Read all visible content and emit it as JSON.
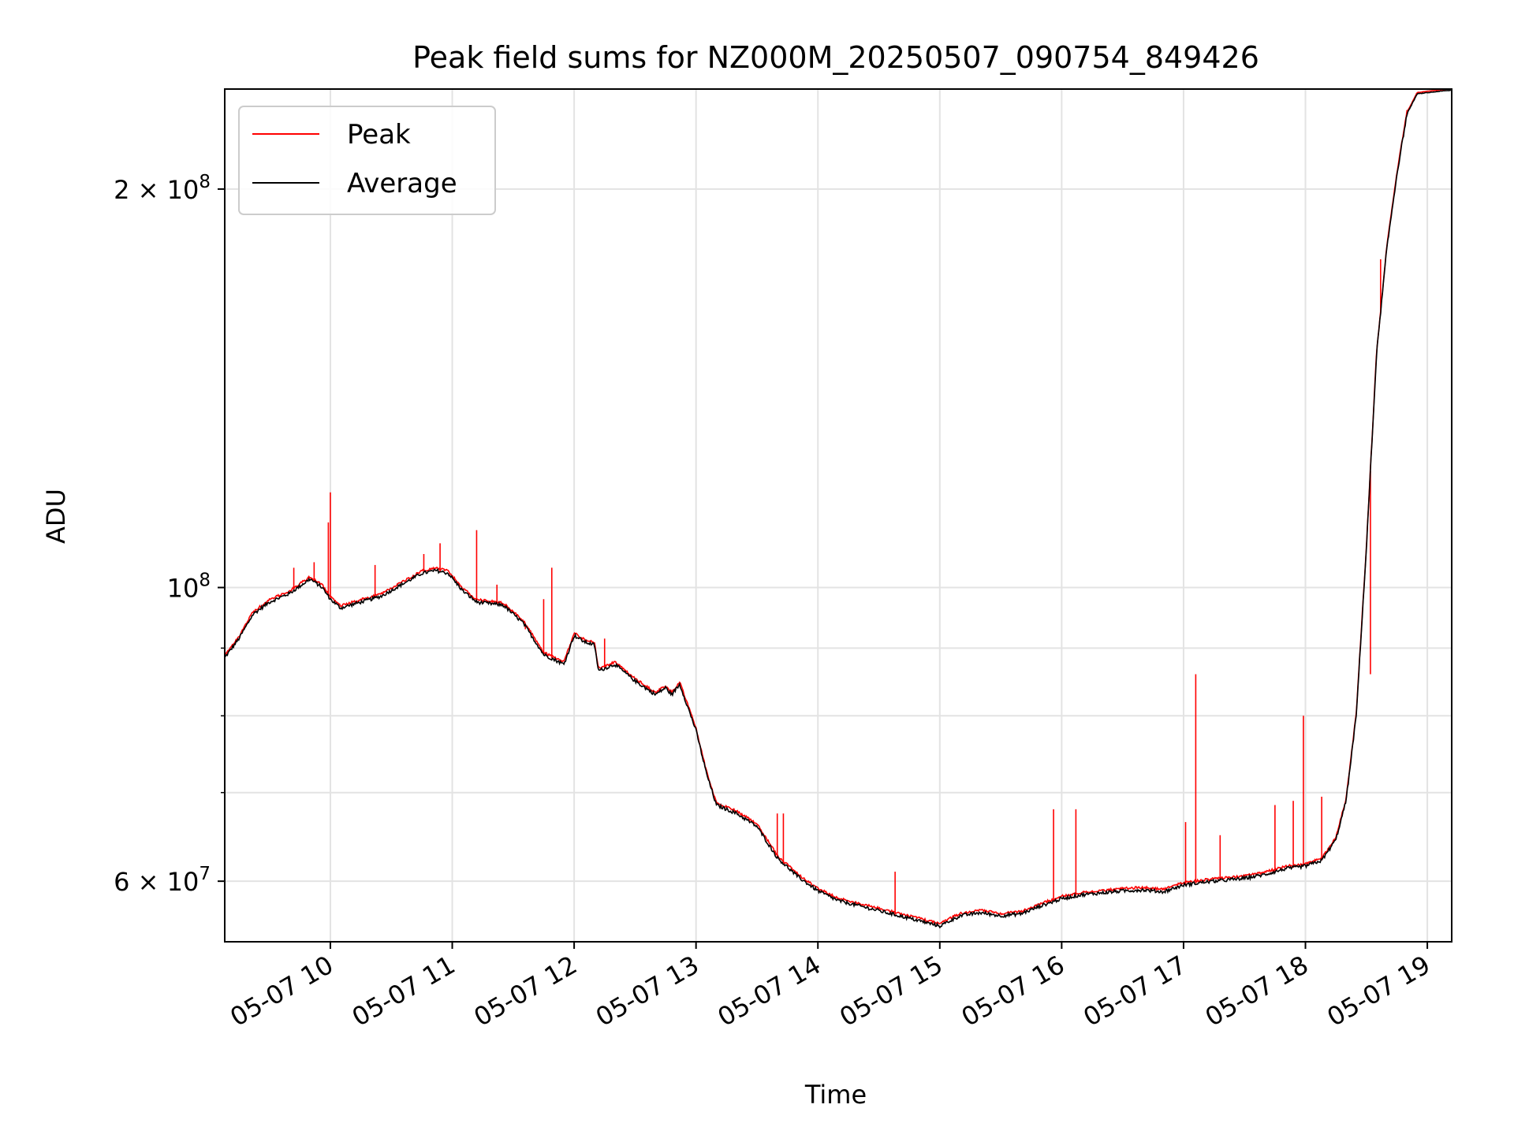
{
  "chart_data": {
    "type": "line",
    "title": "Peak field sums for NZ000M_20250507_090754_849426",
    "xlabel": "Time",
    "ylabel": "ADU",
    "y_scale": "log",
    "ylim": [
      54000000,
      238000000
    ],
    "xlim": [
      "2025-05-07 09:08",
      "2025-05-07 19:12"
    ],
    "grid": true,
    "legend_position": "upper left",
    "x_ticks": [
      {
        "t": "2025-05-07 10:00",
        "label": "05-07 10"
      },
      {
        "t": "2025-05-07 11:00",
        "label": "05-07 11"
      },
      {
        "t": "2025-05-07 12:00",
        "label": "05-07 12"
      },
      {
        "t": "2025-05-07 13:00",
        "label": "05-07 13"
      },
      {
        "t": "2025-05-07 14:00",
        "label": "05-07 14"
      },
      {
        "t": "2025-05-07 15:00",
        "label": "05-07 15"
      },
      {
        "t": "2025-05-07 16:00",
        "label": "05-07 16"
      },
      {
        "t": "2025-05-07 17:00",
        "label": "05-07 17"
      },
      {
        "t": "2025-05-07 18:00",
        "label": "05-07 18"
      },
      {
        "t": "2025-05-07 19:00",
        "label": "05-07 19"
      }
    ],
    "y_ticks": [
      {
        "v": 60000000,
        "label": "6 × 10",
        "exp": "7"
      },
      {
        "v": 100000000,
        "label": "10",
        "exp": "8"
      },
      {
        "v": 200000000,
        "label": "2 × 10",
        "exp": "8"
      }
    ],
    "y_minor_ticks": [
      70000000,
      80000000,
      90000000
    ],
    "series": [
      {
        "name": "Average",
        "color": "#000000",
        "points": [
          [
            "2025-05-07 09:08",
            88500000
          ],
          [
            "2025-05-07 09:15",
            91500000
          ],
          [
            "2025-05-07 09:22",
            95500000
          ],
          [
            "2025-05-07 09:30",
            97500000
          ],
          [
            "2025-05-07 09:40",
            99000000
          ],
          [
            "2025-05-07 09:50",
            101500000
          ],
          [
            "2025-05-07 09:56",
            100000000
          ],
          [
            "2025-05-07 10:00",
            98000000
          ],
          [
            "2025-05-07 10:05",
            96500000
          ],
          [
            "2025-05-07 10:15",
            97500000
          ],
          [
            "2025-05-07 10:25",
            98500000
          ],
          [
            "2025-05-07 10:35",
            100500000
          ],
          [
            "2025-05-07 10:45",
            102500000
          ],
          [
            "2025-05-07 10:52",
            103000000
          ],
          [
            "2025-05-07 10:58",
            102500000
          ],
          [
            "2025-05-07 11:05",
            99500000
          ],
          [
            "2025-05-07 11:12",
            97500000
          ],
          [
            "2025-05-07 11:25",
            97000000
          ],
          [
            "2025-05-07 11:35",
            94000000
          ],
          [
            "2025-05-07 11:45",
            89000000
          ],
          [
            "2025-05-07 11:55",
            87500000
          ],
          [
            "2025-05-07 12:00",
            92000000
          ],
          [
            "2025-05-07 12:05",
            91000000
          ],
          [
            "2025-05-07 12:10",
            90500000
          ],
          [
            "2025-05-07 12:12",
            86500000
          ],
          [
            "2025-05-07 12:20",
            87500000
          ],
          [
            "2025-05-07 12:30",
            85000000
          ],
          [
            "2025-05-07 12:40",
            83000000
          ],
          [
            "2025-05-07 12:45",
            84000000
          ],
          [
            "2025-05-07 12:48",
            83000000
          ],
          [
            "2025-05-07 12:52",
            84500000
          ],
          [
            "2025-05-07 13:00",
            78000000
          ],
          [
            "2025-05-07 13:05",
            72500000
          ],
          [
            "2025-05-07 13:10",
            68500000
          ],
          [
            "2025-05-07 13:20",
            67500000
          ],
          [
            "2025-05-07 13:30",
            66000000
          ],
          [
            "2025-05-07 13:40",
            62500000
          ],
          [
            "2025-05-07 13:50",
            60500000
          ],
          [
            "2025-05-07 14:00",
            59000000
          ],
          [
            "2025-05-07 14:10",
            58000000
          ],
          [
            "2025-05-07 14:20",
            57500000
          ],
          [
            "2025-05-07 14:30",
            57000000
          ],
          [
            "2025-05-07 14:40",
            56500000
          ],
          [
            "2025-05-07 14:50",
            56000000
          ],
          [
            "2025-05-07 15:00",
            55500000
          ],
          [
            "2025-05-07 15:10",
            56500000
          ],
          [
            "2025-05-07 15:20",
            56800000
          ],
          [
            "2025-05-07 15:30",
            56500000
          ],
          [
            "2025-05-07 15:40",
            56700000
          ],
          [
            "2025-05-07 15:50",
            57500000
          ],
          [
            "2025-05-07 16:00",
            58200000
          ],
          [
            "2025-05-07 16:10",
            58600000
          ],
          [
            "2025-05-07 16:20",
            58800000
          ],
          [
            "2025-05-07 16:30",
            59000000
          ],
          [
            "2025-05-07 16:40",
            59100000
          ],
          [
            "2025-05-07 16:50",
            58900000
          ],
          [
            "2025-05-07 17:00",
            59600000
          ],
          [
            "2025-05-07 17:10",
            59900000
          ],
          [
            "2025-05-07 17:20",
            60100000
          ],
          [
            "2025-05-07 17:30",
            60300000
          ],
          [
            "2025-05-07 17:40",
            60700000
          ],
          [
            "2025-05-07 17:50",
            61300000
          ],
          [
            "2025-05-07 18:00",
            61600000
          ],
          [
            "2025-05-07 18:08",
            62200000
          ],
          [
            "2025-05-07 18:15",
            64500000
          ],
          [
            "2025-05-07 18:20",
            69000000
          ],
          [
            "2025-05-07 18:25",
            80000000
          ],
          [
            "2025-05-07 18:30",
            107000000
          ],
          [
            "2025-05-07 18:35",
            150000000
          ],
          [
            "2025-05-07 18:40",
            180000000
          ],
          [
            "2025-05-07 18:45",
            205000000
          ],
          [
            "2025-05-07 18:50",
            228000000
          ],
          [
            "2025-05-07 18:55",
            236000000
          ],
          [
            "2025-05-07 19:05",
            237000000
          ],
          [
            "2025-05-07 19:12",
            237500000
          ]
        ]
      },
      {
        "name": "Peak",
        "color": "#ff0000",
        "spikes": [
          [
            "2025-05-07 09:42",
            103500000
          ],
          [
            "2025-05-07 09:52",
            104500000
          ],
          [
            "2025-05-07 09:59",
            112000000
          ],
          [
            "2025-05-07 10:00",
            118000000
          ],
          [
            "2025-05-07 10:22",
            104000000
          ],
          [
            "2025-05-07 10:46",
            106000000
          ],
          [
            "2025-05-07 10:54",
            108000000
          ],
          [
            "2025-05-07 11:12",
            110500000
          ],
          [
            "2025-05-07 11:22",
            100500000
          ],
          [
            "2025-05-07 11:36",
            93000000
          ],
          [
            "2025-05-07 11:45",
            98000000
          ],
          [
            "2025-05-07 11:49",
            103500000
          ],
          [
            "2025-05-07 12:15",
            91500000
          ],
          [
            "2025-05-07 13:40",
            67500000
          ],
          [
            "2025-05-07 13:43",
            67500000
          ],
          [
            "2025-05-07 14:38",
            61000000
          ],
          [
            "2025-05-07 15:56",
            68000000
          ],
          [
            "2025-05-07 16:07",
            68000000
          ],
          [
            "2025-05-07 17:01",
            66500000
          ],
          [
            "2025-05-07 17:06",
            86000000
          ],
          [
            "2025-05-07 17:18",
            65000000
          ],
          [
            "2025-05-07 17:45",
            68500000
          ],
          [
            "2025-05-07 17:54",
            69000000
          ],
          [
            "2025-05-07 17:59",
            80000000
          ],
          [
            "2025-05-07 18:08",
            69500000
          ],
          [
            "2025-05-07 18:32",
            86000000
          ],
          [
            "2025-05-07 18:37",
            177000000
          ]
        ]
      }
    ]
  }
}
